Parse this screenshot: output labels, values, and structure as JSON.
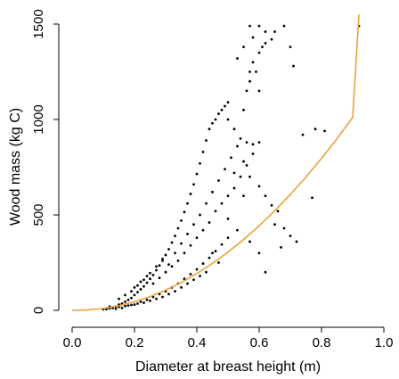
{
  "chart_data": {
    "type": "scatter",
    "title": "",
    "xlabel": "Diameter at breast height (m)",
    "ylabel": "Wood mass (kg C)",
    "xlim": [
      0.0,
      1.0
    ],
    "ylim": [
      0,
      1500
    ],
    "x_ticks": [
      0.0,
      0.2,
      0.4,
      0.6,
      0.8,
      1.0
    ],
    "x_tick_labels": [
      "0.0",
      "0.2",
      "0.4",
      "0.6",
      "0.8",
      "1.0"
    ],
    "y_ticks": [
      0,
      500,
      1000,
      1500
    ],
    "y_tick_labels": [
      "0",
      "500",
      "1000",
      "1500"
    ],
    "grid": false,
    "legend": "none",
    "box": "left and bottom axes only",
    "series": [
      {
        "type": "scatter",
        "color": "#000000",
        "marker": "small filled dot",
        "points": [
          [
            0.12,
            10
          ],
          [
            0.13,
            15
          ],
          [
            0.14,
            20
          ],
          [
            0.15,
            30
          ],
          [
            0.16,
            35
          ],
          [
            0.17,
            45
          ],
          [
            0.18,
            55
          ],
          [
            0.19,
            65
          ],
          [
            0.2,
            80
          ],
          [
            0.21,
            95
          ],
          [
            0.22,
            110
          ],
          [
            0.23,
            125
          ],
          [
            0.24,
            145
          ],
          [
            0.25,
            165
          ],
          [
            0.26,
            185
          ],
          [
            0.27,
            210
          ],
          [
            0.28,
            235
          ],
          [
            0.29,
            260
          ],
          [
            0.3,
            290
          ],
          [
            0.31,
            320
          ],
          [
            0.32,
            355
          ],
          [
            0.33,
            390
          ],
          [
            0.34,
            430
          ],
          [
            0.35,
            470
          ],
          [
            0.36,
            515
          ],
          [
            0.37,
            560
          ],
          [
            0.38,
            610
          ],
          [
            0.39,
            660
          ],
          [
            0.4,
            715
          ],
          [
            0.41,
            770
          ],
          [
            0.42,
            830
          ],
          [
            0.43,
            890
          ],
          [
            0.44,
            950
          ],
          [
            0.45,
            980
          ],
          [
            0.46,
            1000
          ],
          [
            0.47,
            1030
          ],
          [
            0.48,
            1050
          ],
          [
            0.49,
            1070
          ],
          [
            0.5,
            1090
          ],
          [
            0.12,
            20
          ],
          [
            0.14,
            8
          ],
          [
            0.16,
            12
          ],
          [
            0.18,
            25
          ],
          [
            0.2,
            30
          ],
          [
            0.22,
            45
          ],
          [
            0.24,
            55
          ],
          [
            0.26,
            70
          ],
          [
            0.28,
            85
          ],
          [
            0.3,
            100
          ],
          [
            0.32,
            120
          ],
          [
            0.34,
            140
          ],
          [
            0.36,
            165
          ],
          [
            0.38,
            190
          ],
          [
            0.4,
            215
          ],
          [
            0.42,
            245
          ],
          [
            0.44,
            275
          ],
          [
            0.46,
            310
          ],
          [
            0.48,
            345
          ],
          [
            0.5,
            380
          ],
          [
            0.15,
            60
          ],
          [
            0.17,
            80
          ],
          [
            0.19,
            100
          ],
          [
            0.21,
            130
          ],
          [
            0.23,
            160
          ],
          [
            0.25,
            195
          ],
          [
            0.27,
            230
          ],
          [
            0.29,
            270
          ],
          [
            0.31,
            240
          ],
          [
            0.33,
            300
          ],
          [
            0.35,
            350
          ],
          [
            0.37,
            400
          ],
          [
            0.39,
            450
          ],
          [
            0.41,
            500
          ],
          [
            0.43,
            560
          ],
          [
            0.45,
            620
          ],
          [
            0.47,
            680
          ],
          [
            0.49,
            740
          ],
          [
            0.51,
            800
          ],
          [
            0.53,
            860
          ],
          [
            0.2,
            120
          ],
          [
            0.22,
            150
          ],
          [
            0.24,
            180
          ],
          [
            0.26,
            140
          ],
          [
            0.28,
            170
          ],
          [
            0.3,
            200
          ],
          [
            0.32,
            230
          ],
          [
            0.34,
            260
          ],
          [
            0.36,
            300
          ],
          [
            0.38,
            340
          ],
          [
            0.4,
            380
          ],
          [
            0.42,
            420
          ],
          [
            0.44,
            460
          ],
          [
            0.46,
            520
          ],
          [
            0.48,
            560
          ],
          [
            0.5,
            600
          ],
          [
            0.52,
            640
          ],
          [
            0.54,
            700
          ],
          [
            0.56,
            760
          ],
          [
            0.58,
            820
          ],
          [
            0.55,
            1050
          ],
          [
            0.56,
            1150
          ],
          [
            0.57,
            1250
          ],
          [
            0.58,
            1300
          ],
          [
            0.59,
            1250
          ],
          [
            0.6,
            1350
          ],
          [
            0.61,
            1380
          ],
          [
            0.62,
            1400
          ],
          [
            0.58,
            1430
          ],
          [
            0.6,
            1490
          ],
          [
            0.62,
            1460
          ],
          [
            0.57,
            1490
          ],
          [
            0.65,
            1460
          ],
          [
            0.68,
            1490
          ],
          [
            0.7,
            1380
          ],
          [
            0.64,
            1420
          ],
          [
            0.55,
            1380
          ],
          [
            0.53,
            1320
          ],
          [
            0.57,
            1200
          ],
          [
            0.6,
            1150
          ],
          [
            0.5,
            1000
          ],
          [
            0.52,
            950
          ],
          [
            0.54,
            900
          ],
          [
            0.56,
            880
          ],
          [
            0.58,
            870
          ],
          [
            0.6,
            880
          ],
          [
            0.55,
            780
          ],
          [
            0.52,
            720
          ],
          [
            0.57,
            700
          ],
          [
            0.6,
            650
          ],
          [
            0.62,
            600
          ],
          [
            0.64,
            550
          ],
          [
            0.66,
            520
          ],
          [
            0.68,
            430
          ],
          [
            0.7,
            390
          ],
          [
            0.72,
            360
          ],
          [
            0.6,
            300
          ],
          [
            0.62,
            200
          ],
          [
            0.65,
            450
          ],
          [
            0.67,
            330
          ],
          [
            0.74,
            920
          ],
          [
            0.78,
            950
          ],
          [
            0.81,
            940
          ],
          [
            0.77,
            590
          ],
          [
            0.92,
            1490
          ],
          [
            0.71,
            1280
          ],
          [
            0.55,
            600
          ],
          [
            0.5,
            480
          ],
          [
            0.53,
            420
          ],
          [
            0.57,
            360
          ],
          [
            0.45,
            300
          ],
          [
            0.47,
            250
          ],
          [
            0.43,
            200
          ],
          [
            0.41,
            180
          ],
          [
            0.39,
            160
          ],
          [
            0.37,
            140
          ],
          [
            0.35,
            120
          ],
          [
            0.33,
            100
          ],
          [
            0.31,
            85
          ],
          [
            0.29,
            70
          ],
          [
            0.27,
            60
          ],
          [
            0.25,
            50
          ],
          [
            0.23,
            40
          ],
          [
            0.21,
            35
          ],
          [
            0.19,
            28
          ],
          [
            0.17,
            22
          ],
          [
            0.15,
            18
          ],
          [
            0.13,
            12
          ],
          [
            0.11,
            6
          ],
          [
            0.1,
            5
          ]
        ]
      }
    ],
    "fit_curve": {
      "type": "line",
      "color": "#e8a33a",
      "x": [
        0.0,
        0.05,
        0.1,
        0.15,
        0.2,
        0.25,
        0.3,
        0.35,
        0.4,
        0.45,
        0.5,
        0.55,
        0.6,
        0.65,
        0.7,
        0.75,
        0.8,
        0.85,
        0.9,
        0.92
      ],
      "y": [
        0,
        2,
        10,
        24,
        45,
        72,
        106,
        146,
        193,
        246,
        305,
        371,
        443,
        522,
        607,
        698,
        796,
        900,
        1011,
        1550
      ]
    }
  }
}
